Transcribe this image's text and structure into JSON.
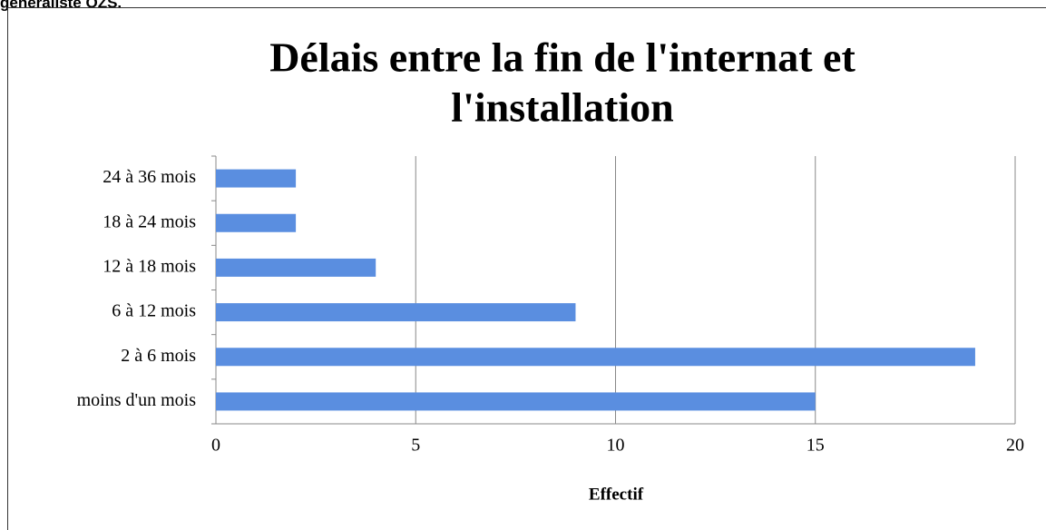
{
  "header_text": "généraliste OZS.",
  "chart_data": {
    "type": "barh",
    "title": [
      "Délais entre la fin de l'internat et",
      "l'installation"
    ],
    "categories": [
      "moins d'un mois",
      "2 à 6 mois",
      "6 à 12 mois",
      "12 à 18 mois",
      "18 à 24 mois",
      "24 à 36 mois"
    ],
    "values": [
      15,
      19,
      9,
      4,
      2,
      2
    ],
    "color": "#5a8ee0",
    "xlabel": "Effectif",
    "xlim": [
      0,
      20
    ],
    "xticks": [
      0,
      5,
      10,
      15,
      20
    ],
    "grid": true
  }
}
